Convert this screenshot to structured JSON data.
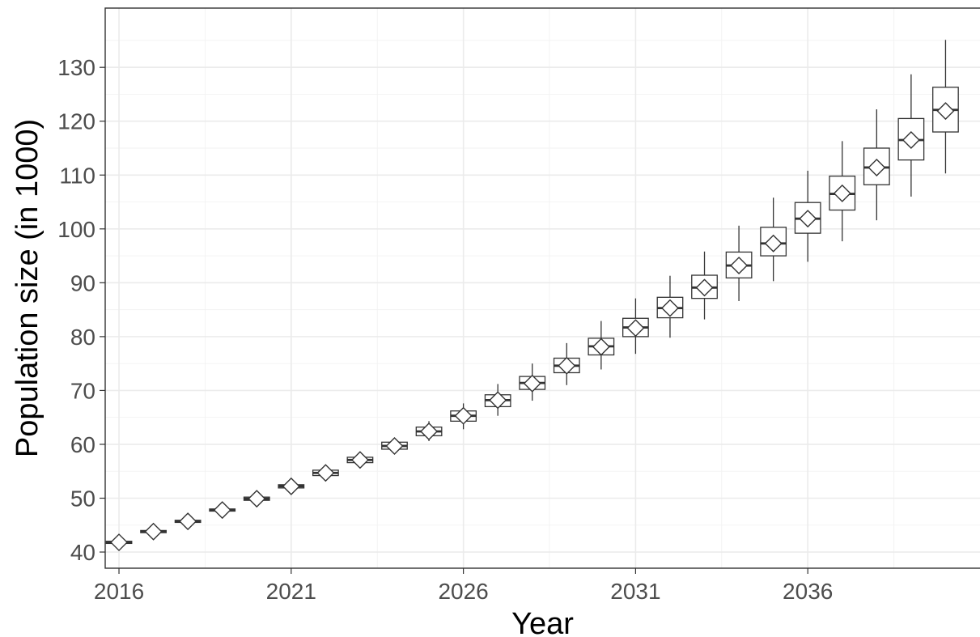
{
  "chart_data": {
    "type": "boxplot",
    "xlabel": "Year",
    "ylabel": "Population size (in 1000)",
    "xlim": [
      2015.6,
      2041.0
    ],
    "ylim": [
      37,
      141
    ],
    "x_ticks": [
      2016,
      2021,
      2026,
      2031,
      2036
    ],
    "y_ticks": [
      40,
      50,
      60,
      70,
      80,
      90,
      100,
      110,
      120,
      130
    ],
    "grid": true,
    "legend": "none",
    "series": [
      {
        "x": 2016,
        "min": 41.6,
        "q1": 41.6,
        "median": 41.8,
        "q3": 42.0,
        "max": 42.0,
        "mean": 41.8
      },
      {
        "x": 2017,
        "min": 43.4,
        "q1": 43.6,
        "median": 43.8,
        "q3": 44.0,
        "max": 44.2,
        "mean": 43.8
      },
      {
        "x": 2018,
        "min": 45.4,
        "q1": 45.5,
        "median": 45.7,
        "q3": 45.9,
        "max": 46.1,
        "mean": 45.7
      },
      {
        "x": 2019,
        "min": 47.4,
        "q1": 47.6,
        "median": 47.8,
        "q3": 48.0,
        "max": 48.3,
        "mean": 47.8
      },
      {
        "x": 2020,
        "min": 49.3,
        "q1": 49.6,
        "median": 49.9,
        "q3": 50.2,
        "max": 50.5,
        "mean": 49.9
      },
      {
        "x": 2021,
        "min": 51.5,
        "q1": 51.9,
        "median": 52.2,
        "q3": 52.5,
        "max": 53.0,
        "mean": 52.2
      },
      {
        "x": 2022,
        "min": 53.6,
        "q1": 54.2,
        "median": 54.7,
        "q3": 55.2,
        "max": 55.7,
        "mean": 54.7
      },
      {
        "x": 2023,
        "min": 56.0,
        "q1": 56.6,
        "median": 57.1,
        "q3": 57.6,
        "max": 58.4,
        "mean": 57.1
      },
      {
        "x": 2024,
        "min": 58.3,
        "q1": 59.1,
        "median": 59.7,
        "q3": 60.4,
        "max": 61.2,
        "mean": 59.7
      },
      {
        "x": 2025,
        "min": 60.6,
        "q1": 61.6,
        "median": 62.4,
        "q3": 63.2,
        "max": 64.3,
        "mean": 62.4
      },
      {
        "x": 2026,
        "min": 62.8,
        "q1": 64.3,
        "median": 65.3,
        "q3": 66.2,
        "max": 67.6,
        "mean": 65.3
      },
      {
        "x": 2027,
        "min": 65.3,
        "q1": 67.0,
        "median": 68.2,
        "q3": 69.2,
        "max": 71.2,
        "mean": 68.2
      },
      {
        "x": 2028,
        "min": 68.1,
        "q1": 70.2,
        "median": 71.4,
        "q3": 72.6,
        "max": 75.0,
        "mean": 71.3
      },
      {
        "x": 2029,
        "min": 71.0,
        "q1": 73.3,
        "median": 74.6,
        "q3": 76.0,
        "max": 78.8,
        "mean": 74.6
      },
      {
        "x": 2030,
        "min": 73.9,
        "q1": 76.6,
        "median": 78.2,
        "q3": 79.7,
        "max": 82.9,
        "mean": 78.1
      },
      {
        "x": 2031,
        "min": 76.8,
        "q1": 80.0,
        "median": 81.7,
        "q3": 83.4,
        "max": 87.1,
        "mean": 81.6
      },
      {
        "x": 2032,
        "min": 79.8,
        "q1": 83.5,
        "median": 85.3,
        "q3": 87.3,
        "max": 91.3,
        "mean": 85.3
      },
      {
        "x": 2033,
        "min": 83.2,
        "q1": 87.1,
        "median": 89.1,
        "q3": 91.4,
        "max": 95.8,
        "mean": 89.1
      },
      {
        "x": 2034,
        "min": 86.6,
        "q1": 90.9,
        "median": 93.2,
        "q3": 95.7,
        "max": 100.6,
        "mean": 93.2
      },
      {
        "x": 2035,
        "min": 90.3,
        "q1": 95.0,
        "median": 97.3,
        "q3": 100.3,
        "max": 105.8,
        "mean": 97.3
      },
      {
        "x": 2036,
        "min": 93.9,
        "q1": 99.2,
        "median": 101.9,
        "q3": 104.9,
        "max": 110.8,
        "mean": 101.9
      },
      {
        "x": 2037,
        "min": 97.7,
        "q1": 103.5,
        "median": 106.5,
        "q3": 109.8,
        "max": 116.3,
        "mean": 106.6
      },
      {
        "x": 2038,
        "min": 101.6,
        "q1": 108.2,
        "median": 111.4,
        "q3": 115.0,
        "max": 122.2,
        "mean": 111.4
      },
      {
        "x": 2039,
        "min": 106.0,
        "q1": 112.8,
        "median": 116.5,
        "q3": 120.5,
        "max": 128.7,
        "mean": 116.5
      },
      {
        "x": 2040,
        "min": 110.3,
        "q1": 118.0,
        "median": 122.1,
        "q3": 126.3,
        "max": 135.1,
        "mean": 121.9
      }
    ]
  }
}
